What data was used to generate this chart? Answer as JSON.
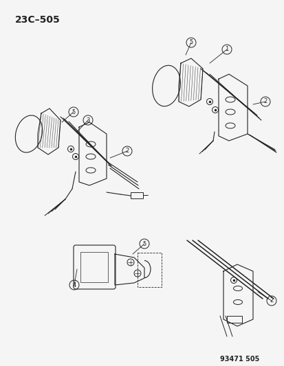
{
  "title": "23C–505",
  "part_number": "93471 505",
  "bg": "#f5f5f5",
  "lc": "#222222",
  "fig_w": 4.14,
  "fig_h": 5.33,
  "dpi": 100
}
